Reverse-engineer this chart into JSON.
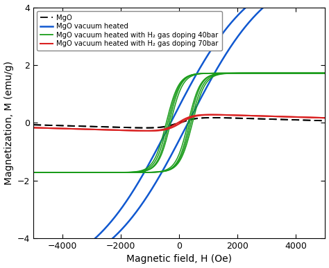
{
  "xlabel": "Magnetic field, H (Oe)",
  "ylabel": "Magnetization, M (emu/g)",
  "xlim": [
    -5000,
    5000
  ],
  "ylim": [
    -4,
    4
  ],
  "xticks": [
    -4000,
    -2000,
    0,
    2000,
    4000
  ],
  "yticks": [
    -4,
    -2,
    0,
    2,
    4
  ],
  "legend_labels": [
    "MgO",
    "MgO vacuum heated",
    "MgO vacuum heated with H₂ gas doping 40bar",
    "MgO vacuum heated with H₂ gas doping 70bar"
  ],
  "colors": {
    "mgo": "#000000",
    "blue": "#1058d0",
    "green": "#1a9c1a",
    "red": "#d92020"
  },
  "background_color": "#ffffff",
  "blue_Ms": 5.5,
  "blue_a": 2800,
  "blue_Hc": 300,
  "green_Ms": 1.72,
  "green_a": 400,
  "green_Hc": 350,
  "red_Ms": 0.32,
  "red_a": 500,
  "red_Hc": 50,
  "mgo_Ms": 0.22,
  "mgo_a": 600,
  "mgo_Hc": 30,
  "mgo_slope": -3e-05,
  "red_slope": -3e-05
}
